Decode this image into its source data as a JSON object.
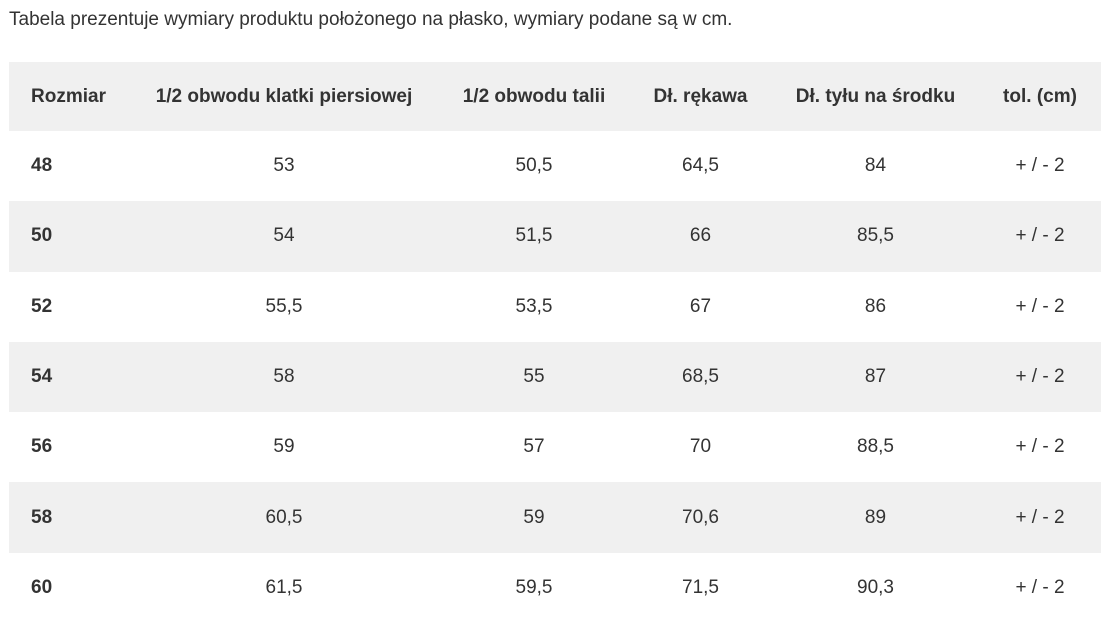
{
  "intro": "Tabela prezentuje wymiary produktu położonego na płasko, wymiary podane są w cm.",
  "table": {
    "headers": [
      "Rozmiar",
      "1/2 obwodu klatki piersiowej",
      "1/2 obwodu talii",
      "Dł. rękawa",
      "Dł. tyłu na środku",
      "tol. (cm)"
    ],
    "rows": [
      [
        "48",
        "53",
        "50,5",
        "64,5",
        "84",
        "+ / - 2"
      ],
      [
        "50",
        "54",
        "51,5",
        "66",
        "85,5",
        "+ / - 2"
      ],
      [
        "52",
        "55,5",
        "53,5",
        "67",
        "86",
        "+ / - 2"
      ],
      [
        "54",
        "58",
        "55",
        "68,5",
        "87",
        "+ / - 2"
      ],
      [
        "56",
        "59",
        "57",
        "70",
        "88,5",
        "+ / - 2"
      ],
      [
        "58",
        "60,5",
        "59",
        "70,6",
        "89",
        "+ / - 2"
      ],
      [
        "60",
        "61,5",
        "59,5",
        "71,5",
        "90,3",
        "+ / - 2"
      ]
    ]
  },
  "colors": {
    "stripe": "#f0f0f0",
    "text": "#333333"
  }
}
